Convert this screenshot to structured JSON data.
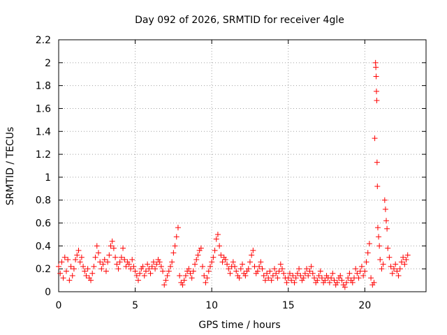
{
  "chart_data": {
    "type": "scatter",
    "title": "Day 092 of 2026, SRMTID for receiver 4gle",
    "xlabel": "GPS time / hours",
    "ylabel": "SRMTID / TECUs",
    "xlim": [
      0,
      24
    ],
    "ylim": [
      0,
      2.2
    ],
    "xticks": [
      0,
      5,
      10,
      15,
      20
    ],
    "xtick_labels": [
      "0",
      "5",
      "10",
      "15",
      "20"
    ],
    "yticks": [
      0,
      0.2,
      0.4,
      0.6,
      0.8,
      1,
      1.2,
      1.4,
      1.6,
      1.8,
      2,
      2.2
    ],
    "ytick_labels": [
      "0",
      "0.2",
      "0.4",
      "0.6",
      "0.8",
      "1",
      "1.2",
      "1.4",
      "1.6",
      "1.8",
      "2",
      "2.2"
    ],
    "grid": true,
    "marker": "plus",
    "marker_color": "#ff0000",
    "series": [
      {
        "name": "SRMTID",
        "points": [
          [
            0.0,
            0.22
          ],
          [
            0.1,
            0.16
          ],
          [
            0.2,
            0.26
          ],
          [
            0.3,
            0.12
          ],
          [
            0.4,
            0.3
          ],
          [
            0.5,
            0.18
          ],
          [
            0.6,
            0.28
          ],
          [
            0.7,
            0.1
          ],
          [
            0.8,
            0.22
          ],
          [
            0.9,
            0.14
          ],
          [
            1.0,
            0.2
          ],
          [
            1.1,
            0.28
          ],
          [
            1.2,
            0.32
          ],
          [
            1.3,
            0.36
          ],
          [
            1.4,
            0.26
          ],
          [
            1.5,
            0.3
          ],
          [
            1.6,
            0.22
          ],
          [
            1.7,
            0.18
          ],
          [
            1.8,
            0.14
          ],
          [
            1.9,
            0.2
          ],
          [
            2.0,
            0.12
          ],
          [
            2.1,
            0.1
          ],
          [
            2.2,
            0.16
          ],
          [
            2.3,
            0.22
          ],
          [
            2.4,
            0.3
          ],
          [
            2.5,
            0.4
          ],
          [
            2.6,
            0.34
          ],
          [
            2.7,
            0.26
          ],
          [
            2.8,
            0.2
          ],
          [
            2.9,
            0.24
          ],
          [
            3.0,
            0.28
          ],
          [
            3.1,
            0.18
          ],
          [
            3.2,
            0.26
          ],
          [
            3.3,
            0.32
          ],
          [
            3.4,
            0.4
          ],
          [
            3.5,
            0.44
          ],
          [
            3.6,
            0.38
          ],
          [
            3.7,
            0.3
          ],
          [
            3.8,
            0.24
          ],
          [
            3.9,
            0.2
          ],
          [
            4.0,
            0.26
          ],
          [
            4.1,
            0.3
          ],
          [
            4.2,
            0.38
          ],
          [
            4.3,
            0.28
          ],
          [
            4.4,
            0.22
          ],
          [
            4.5,
            0.26
          ],
          [
            4.6,
            0.24
          ],
          [
            4.7,
            0.2
          ],
          [
            4.8,
            0.28
          ],
          [
            4.9,
            0.22
          ],
          [
            5.0,
            0.18
          ],
          [
            5.1,
            0.14
          ],
          [
            5.2,
            0.1
          ],
          [
            5.3,
            0.16
          ],
          [
            5.4,
            0.2
          ],
          [
            5.5,
            0.22
          ],
          [
            5.6,
            0.14
          ],
          [
            5.7,
            0.18
          ],
          [
            5.8,
            0.24
          ],
          [
            5.9,
            0.2
          ],
          [
            6.0,
            0.16
          ],
          [
            6.1,
            0.22
          ],
          [
            6.2,
            0.26
          ],
          [
            6.3,
            0.2
          ],
          [
            6.4,
            0.24
          ],
          [
            6.5,
            0.28
          ],
          [
            6.6,
            0.26
          ],
          [
            6.7,
            0.22
          ],
          [
            6.8,
            0.18
          ],
          [
            6.9,
            0.06
          ],
          [
            7.0,
            0.1
          ],
          [
            7.1,
            0.14
          ],
          [
            7.2,
            0.18
          ],
          [
            7.3,
            0.22
          ],
          [
            7.4,
            0.26
          ],
          [
            7.5,
            0.34
          ],
          [
            7.6,
            0.4
          ],
          [
            7.7,
            0.48
          ],
          [
            7.8,
            0.56
          ],
          [
            7.9,
            0.14
          ],
          [
            8.0,
            0.08
          ],
          [
            8.1,
            0.06
          ],
          [
            8.2,
            0.1
          ],
          [
            8.3,
            0.14
          ],
          [
            8.4,
            0.18
          ],
          [
            8.5,
            0.2
          ],
          [
            8.6,
            0.16
          ],
          [
            8.7,
            0.12
          ],
          [
            8.8,
            0.18
          ],
          [
            8.9,
            0.24
          ],
          [
            9.0,
            0.28
          ],
          [
            9.1,
            0.32
          ],
          [
            9.2,
            0.36
          ],
          [
            9.3,
            0.38
          ],
          [
            9.4,
            0.22
          ],
          [
            9.5,
            0.14
          ],
          [
            9.6,
            0.08
          ],
          [
            9.7,
            0.12
          ],
          [
            9.8,
            0.18
          ],
          [
            9.9,
            0.22
          ],
          [
            10.0,
            0.26
          ],
          [
            10.1,
            0.3
          ],
          [
            10.2,
            0.36
          ],
          [
            10.3,
            0.46
          ],
          [
            10.4,
            0.5
          ],
          [
            10.5,
            0.4
          ],
          [
            10.6,
            0.32
          ],
          [
            10.7,
            0.26
          ],
          [
            10.8,
            0.3
          ],
          [
            10.9,
            0.28
          ],
          [
            11.0,
            0.24
          ],
          [
            11.1,
            0.2
          ],
          [
            11.2,
            0.16
          ],
          [
            11.3,
            0.22
          ],
          [
            11.4,
            0.26
          ],
          [
            11.5,
            0.22
          ],
          [
            11.6,
            0.18
          ],
          [
            11.7,
            0.14
          ],
          [
            11.8,
            0.12
          ],
          [
            11.9,
            0.2
          ],
          [
            12.0,
            0.24
          ],
          [
            12.1,
            0.16
          ],
          [
            12.2,
            0.14
          ],
          [
            12.3,
            0.18
          ],
          [
            12.4,
            0.2
          ],
          [
            12.5,
            0.26
          ],
          [
            12.6,
            0.32
          ],
          [
            12.7,
            0.36
          ],
          [
            12.8,
            0.22
          ],
          [
            12.9,
            0.16
          ],
          [
            13.0,
            0.18
          ],
          [
            13.1,
            0.22
          ],
          [
            13.2,
            0.26
          ],
          [
            13.3,
            0.2
          ],
          [
            13.4,
            0.14
          ],
          [
            13.5,
            0.1
          ],
          [
            13.6,
            0.16
          ],
          [
            13.7,
            0.12
          ],
          [
            13.8,
            0.18
          ],
          [
            13.9,
            0.1
          ],
          [
            14.0,
            0.14
          ],
          [
            14.1,
            0.2
          ],
          [
            14.2,
            0.16
          ],
          [
            14.3,
            0.12
          ],
          [
            14.4,
            0.18
          ],
          [
            14.5,
            0.24
          ],
          [
            14.6,
            0.2
          ],
          [
            14.7,
            0.16
          ],
          [
            14.8,
            0.12
          ],
          [
            14.9,
            0.08
          ],
          [
            15.0,
            0.12
          ],
          [
            15.1,
            0.16
          ],
          [
            15.2,
            0.1
          ],
          [
            15.3,
            0.14
          ],
          [
            15.4,
            0.08
          ],
          [
            15.5,
            0.12
          ],
          [
            15.6,
            0.16
          ],
          [
            15.7,
            0.2
          ],
          [
            15.8,
            0.14
          ],
          [
            15.9,
            0.1
          ],
          [
            16.0,
            0.12
          ],
          [
            16.1,
            0.16
          ],
          [
            16.2,
            0.2
          ],
          [
            16.3,
            0.14
          ],
          [
            16.4,
            0.18
          ],
          [
            16.5,
            0.22
          ],
          [
            16.6,
            0.16
          ],
          [
            16.7,
            0.12
          ],
          [
            16.8,
            0.08
          ],
          [
            16.9,
            0.1
          ],
          [
            17.0,
            0.14
          ],
          [
            17.1,
            0.18
          ],
          [
            17.2,
            0.12
          ],
          [
            17.3,
            0.08
          ],
          [
            17.4,
            0.1
          ],
          [
            17.5,
            0.14
          ],
          [
            17.6,
            0.12
          ],
          [
            17.7,
            0.08
          ],
          [
            17.8,
            0.12
          ],
          [
            17.9,
            0.16
          ],
          [
            18.0,
            0.1
          ],
          [
            18.1,
            0.06
          ],
          [
            18.2,
            0.08
          ],
          [
            18.3,
            0.12
          ],
          [
            18.4,
            0.14
          ],
          [
            18.5,
            0.1
          ],
          [
            18.6,
            0.06
          ],
          [
            18.7,
            0.04
          ],
          [
            18.8,
            0.08
          ],
          [
            18.9,
            0.12
          ],
          [
            19.0,
            0.16
          ],
          [
            19.1,
            0.1
          ],
          [
            19.2,
            0.08
          ],
          [
            19.3,
            0.12
          ],
          [
            19.4,
            0.2
          ],
          [
            19.5,
            0.16
          ],
          [
            19.6,
            0.12
          ],
          [
            19.7,
            0.18
          ],
          [
            19.8,
            0.22
          ],
          [
            19.9,
            0.14
          ],
          [
            20.0,
            0.18
          ],
          [
            20.1,
            0.26
          ],
          [
            20.2,
            0.34
          ],
          [
            20.3,
            0.42
          ],
          [
            20.4,
            0.12
          ],
          [
            20.5,
            0.06
          ],
          [
            20.6,
            0.08
          ],
          [
            20.65,
            1.34
          ],
          [
            20.7,
            2.0
          ],
          [
            20.72,
            1.96
          ],
          [
            20.74,
            1.88
          ],
          [
            20.76,
            1.75
          ],
          [
            20.78,
            1.67
          ],
          [
            20.8,
            1.13
          ],
          [
            20.82,
            0.92
          ],
          [
            20.85,
            0.56
          ],
          [
            20.9,
            0.48
          ],
          [
            20.95,
            0.4
          ],
          [
            21.0,
            0.28
          ],
          [
            21.1,
            0.2
          ],
          [
            21.2,
            0.24
          ],
          [
            21.3,
            0.8
          ],
          [
            21.35,
            0.72
          ],
          [
            21.4,
            0.62
          ],
          [
            21.45,
            0.55
          ],
          [
            21.5,
            0.38
          ],
          [
            21.6,
            0.3
          ],
          [
            21.7,
            0.22
          ],
          [
            21.8,
            0.16
          ],
          [
            21.9,
            0.2
          ],
          [
            22.0,
            0.24
          ],
          [
            22.1,
            0.18
          ],
          [
            22.2,
            0.14
          ],
          [
            22.3,
            0.2
          ],
          [
            22.4,
            0.26
          ],
          [
            22.5,
            0.3
          ],
          [
            22.6,
            0.24
          ],
          [
            22.7,
            0.28
          ],
          [
            22.8,
            0.32
          ]
        ]
      }
    ]
  }
}
